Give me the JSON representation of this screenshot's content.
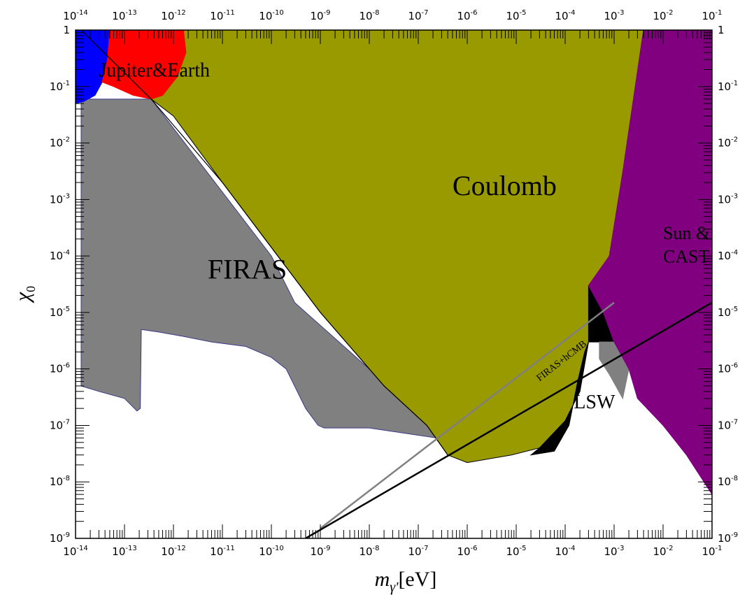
{
  "chart_data": {
    "type": "area",
    "title": "",
    "xlabel": {
      "main": "m",
      "sub": "γ'",
      "unit": "[eV]"
    },
    "ylabel": {
      "main": "χ",
      "sub": "0"
    },
    "x_scale": "log",
    "y_scale": "log",
    "xlim": [
      1e-14,
      0.1
    ],
    "ylim": [
      1e-09,
      1
    ],
    "x_tick_exponents": [
      -14,
      -13,
      -12,
      -11,
      -10,
      -9,
      -8,
      -7,
      -6,
      -5,
      -4,
      -3,
      -2,
      -1
    ],
    "y_tick_labels": [
      {
        "value": 1,
        "base": "1",
        "exp": ""
      },
      {
        "value": 0.1,
        "base": "10",
        "exp": "-1"
      },
      {
        "value": 0.01,
        "base": "10",
        "exp": "-2"
      },
      {
        "value": 0.001,
        "base": "10",
        "exp": "-3"
      },
      {
        "value": 0.0001,
        "base": "10",
        "exp": "-4"
      },
      {
        "value": 1e-05,
        "base": "10",
        "exp": "-5"
      },
      {
        "value": 1e-06,
        "base": "10",
        "exp": "-6"
      },
      {
        "value": 1e-07,
        "base": "10",
        "exp": "-7"
      },
      {
        "value": 1e-08,
        "base": "10",
        "exp": "-8"
      },
      {
        "value": 1e-09,
        "base": "10",
        "exp": "-9"
      }
    ],
    "grid": false,
    "regions": [
      {
        "name": "FIRAS",
        "color": "#808080",
        "edge": "#3a3a8a",
        "label": {
          "text": "FIRAS",
          "x": 5e-12,
          "y": 4e-05,
          "color": "#ffffff",
          "size": 40
        },
        "points": [
          [
            1.3e-14,
            0.07
          ],
          [
            2e-14,
            0.06
          ],
          [
            1e-13,
            0.06
          ],
          [
            3.5e-13,
            0.06
          ],
          [
            1e-10,
            0.0001
          ],
          [
            3e-10,
            1.5e-05
          ],
          [
            1e-08,
            1e-06
          ],
          [
            2e-07,
            1e-07
          ],
          [
            1e-06,
            5e-08
          ],
          [
            1e-08,
            9e-08
          ],
          [
            1.2e-09,
            9e-08
          ],
          [
            9e-10,
            1e-07
          ],
          [
            5e-10,
            2e-07
          ],
          [
            2e-10,
            1e-06
          ],
          [
            1e-10,
            1.6e-06
          ],
          [
            3e-11,
            2.5e-06
          ],
          [
            6e-12,
            3e-06
          ],
          [
            1.5e-12,
            3.8e-06
          ],
          [
            5e-13,
            4.5e-06
          ],
          [
            2.2e-13,
            5e-06
          ],
          [
            2.1e-13,
            2e-07
          ],
          [
            1.8e-13,
            1.8e-07
          ],
          [
            1e-13,
            3e-07
          ],
          [
            3e-14,
            4e-07
          ],
          [
            1.3e-14,
            5e-07
          ]
        ]
      },
      {
        "name": "Coulomb",
        "color": "#999900",
        "edge": "#000000",
        "label": {
          "text": "Coulomb",
          "x": 5e-07,
          "y": 0.0012,
          "color": "#000000",
          "size": 40
        },
        "points": [
          [
            2e-13,
            1
          ],
          [
            0.004,
            1
          ],
          [
            0.0015,
            0.003
          ],
          [
            0.0008,
            0.0001
          ],
          [
            0.0004,
            3e-05
          ],
          [
            0.0003,
            3e-06
          ],
          [
            0.0002,
            4e-07
          ],
          [
            0.0001,
            1.2e-07
          ],
          [
            3e-05,
            4e-08
          ],
          [
            8e-06,
            3e-08
          ],
          [
            1e-06,
            2.2e-08
          ],
          [
            4e-07,
            3e-08
          ],
          [
            1.5e-07,
            1e-07
          ],
          [
            2e-08,
            5e-07
          ],
          [
            1e-09,
            1e-05
          ],
          [
            1e-11,
            0.002
          ],
          [
            1e-12,
            0.03
          ],
          [
            3.5e-13,
            0.06
          ]
        ]
      },
      {
        "name": "LSW",
        "color": "#000000",
        "edge": "#000000",
        "label": {
          "text": "LSW",
          "x": 0.00015,
          "y": 2e-07,
          "color": "#000000",
          "size": 28
        },
        "points": [
          [
            0.0003,
            3e-05
          ],
          [
            0.0006,
            1e-05
          ],
          [
            0.0012,
            3e-06
          ],
          [
            0.0003,
            3e-06
          ],
          [
            0.0002,
            4e-07
          ],
          [
            0.0001,
            1.2e-07
          ],
          [
            3e-05,
            4e-08
          ],
          [
            2e-05,
            3e-08
          ],
          [
            6e-05,
            3.5e-08
          ],
          [
            0.00012,
            1e-07
          ],
          [
            0.00018,
            6e-07
          ],
          [
            0.00025,
            2e-06
          ],
          [
            0.0003,
            3e-06
          ]
        ]
      },
      {
        "name": "LSW-gray",
        "color": "#808080",
        "edge": "#808080",
        "points": [
          [
            0.0005,
            3e-06
          ],
          [
            0.002,
            3e-06
          ],
          [
            0.002,
            1e-06
          ],
          [
            0.0015,
            3e-07
          ],
          [
            0.0008,
            8e-07
          ],
          [
            0.0005,
            1.5e-06
          ]
        ]
      },
      {
        "name": "Sun & CAST",
        "color": "#800080",
        "edge": "#800080",
        "label": {
          "text": "Sun &",
          "text2": "CAST",
          "x": 0.01,
          "y": 0.0002,
          "color": "#000000",
          "size": 26
        },
        "points": [
          [
            0.004,
            1
          ],
          [
            0.1,
            1
          ],
          [
            0.1,
            6e-09
          ],
          [
            0.03,
            3e-08
          ],
          [
            0.01,
            1e-07
          ],
          [
            0.003,
            3e-07
          ],
          [
            0.002,
            1e-06
          ],
          [
            0.001,
            3e-06
          ],
          [
            0.0006,
            1e-05
          ],
          [
            0.0003,
            3e-05
          ],
          [
            0.0008,
            0.0001
          ],
          [
            0.0015,
            0.003
          ]
        ]
      },
      {
        "name": "Jupiter&Earth blue",
        "color": "#0000ff",
        "edge": "#0000ff",
        "points": [
          [
            1e-14,
            1
          ],
          [
            5e-14,
            1
          ],
          [
            4.5e-14,
            0.3
          ],
          [
            3.5e-14,
            0.12
          ],
          [
            2.5e-14,
            0.07
          ],
          [
            1.5e-14,
            0.055
          ],
          [
            1e-14,
            0.05
          ]
        ]
      },
      {
        "name": "Jupiter&Earth red",
        "color": "#ff0000",
        "edge": "#ff0000",
        "label": {
          "text": "Jupiter&Earth",
          "x": 3e-14,
          "y": 0.15,
          "color": "#000000",
          "size": 28
        },
        "points": [
          [
            5e-14,
            1
          ],
          [
            1.6e-12,
            1
          ],
          [
            1.8e-12,
            0.4
          ],
          [
            1.2e-12,
            0.15
          ],
          [
            6e-13,
            0.07
          ],
          [
            3.5e-13,
            0.06
          ],
          [
            1.5e-13,
            0.07
          ],
          [
            6e-14,
            0.1
          ],
          [
            3.5e-14,
            0.12
          ],
          [
            4.5e-14,
            0.3
          ]
        ]
      }
    ],
    "lines": [
      {
        "name": "black-diagonal",
        "color": "#000000",
        "width": 1.2,
        "points": [
          [
            1.3e-14,
            1
          ],
          [
            3.5e-13,
            0.06
          ],
          [
            1e-11,
            0.002
          ],
          [
            1e-09,
            1e-05
          ],
          [
            2e-08,
            5e-07
          ],
          [
            1.5e-07,
            1e-07
          ],
          [
            4e-07,
            3e-08
          ]
        ]
      },
      {
        "name": "FIRAS+hCMB",
        "color": "#808080",
        "width": 2.5,
        "points": [
          [
            1e-09,
            1.5e-09
          ],
          [
            0.001,
            1.5e-05
          ]
        ],
        "label": {
          "text": "FIRAS+hCMB",
          "x": 3e-05,
          "y": 6e-07,
          "size": 14
        }
      },
      {
        "name": "black-thick",
        "color": "#000000",
        "width": 2.5,
        "points": [
          [
            5e-10,
            1e-09
          ],
          [
            0.1,
            1.5e-05
          ]
        ]
      }
    ]
  }
}
